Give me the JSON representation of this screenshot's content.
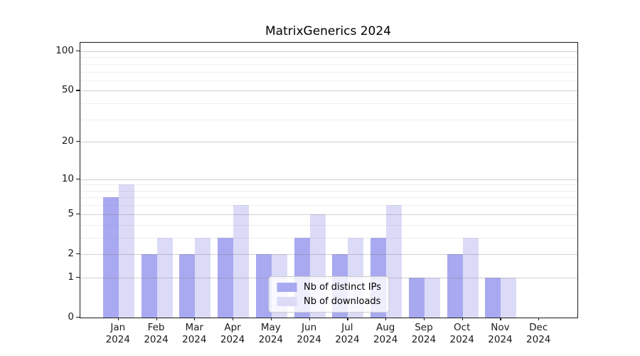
{
  "title": "MatrixGenerics 2024",
  "chart_data": {
    "type": "bar",
    "title": "MatrixGenerics 2024",
    "x_categories": [
      "Jan",
      "Feb",
      "Mar",
      "Apr",
      "May",
      "Jun",
      "Jul",
      "Aug",
      "Sep",
      "Oct",
      "Nov",
      "Dec"
    ],
    "x_year": "2024",
    "series": [
      {
        "name": "Nb of distinct IPs",
        "color": "#a9a9f1",
        "values": [
          7,
          2,
          2,
          3,
          2,
          3,
          2,
          3,
          1,
          2,
          1,
          0
        ]
      },
      {
        "name": "Nb of downloads",
        "color": "#dbdbf8",
        "values": [
          9,
          3,
          3,
          6,
          2,
          5,
          3,
          6,
          1,
          3,
          1,
          0
        ]
      }
    ],
    "yscale": "log1p",
    "y_tick_values": [
      0,
      1,
      2,
      5,
      10,
      20,
      50,
      100
    ],
    "y_tick_labels": [
      "0",
      "1",
      "2",
      "5",
      "10",
      "20",
      "50",
      "100"
    ],
    "y_minor_gridline_values": [
      3,
      4,
      6,
      7,
      8,
      9,
      30,
      40,
      60,
      70,
      80,
      90
    ],
    "ylim": [
      0,
      116
    ],
    "grid": true,
    "legend_position": "lower center",
    "xlabel": "",
    "ylabel": ""
  }
}
